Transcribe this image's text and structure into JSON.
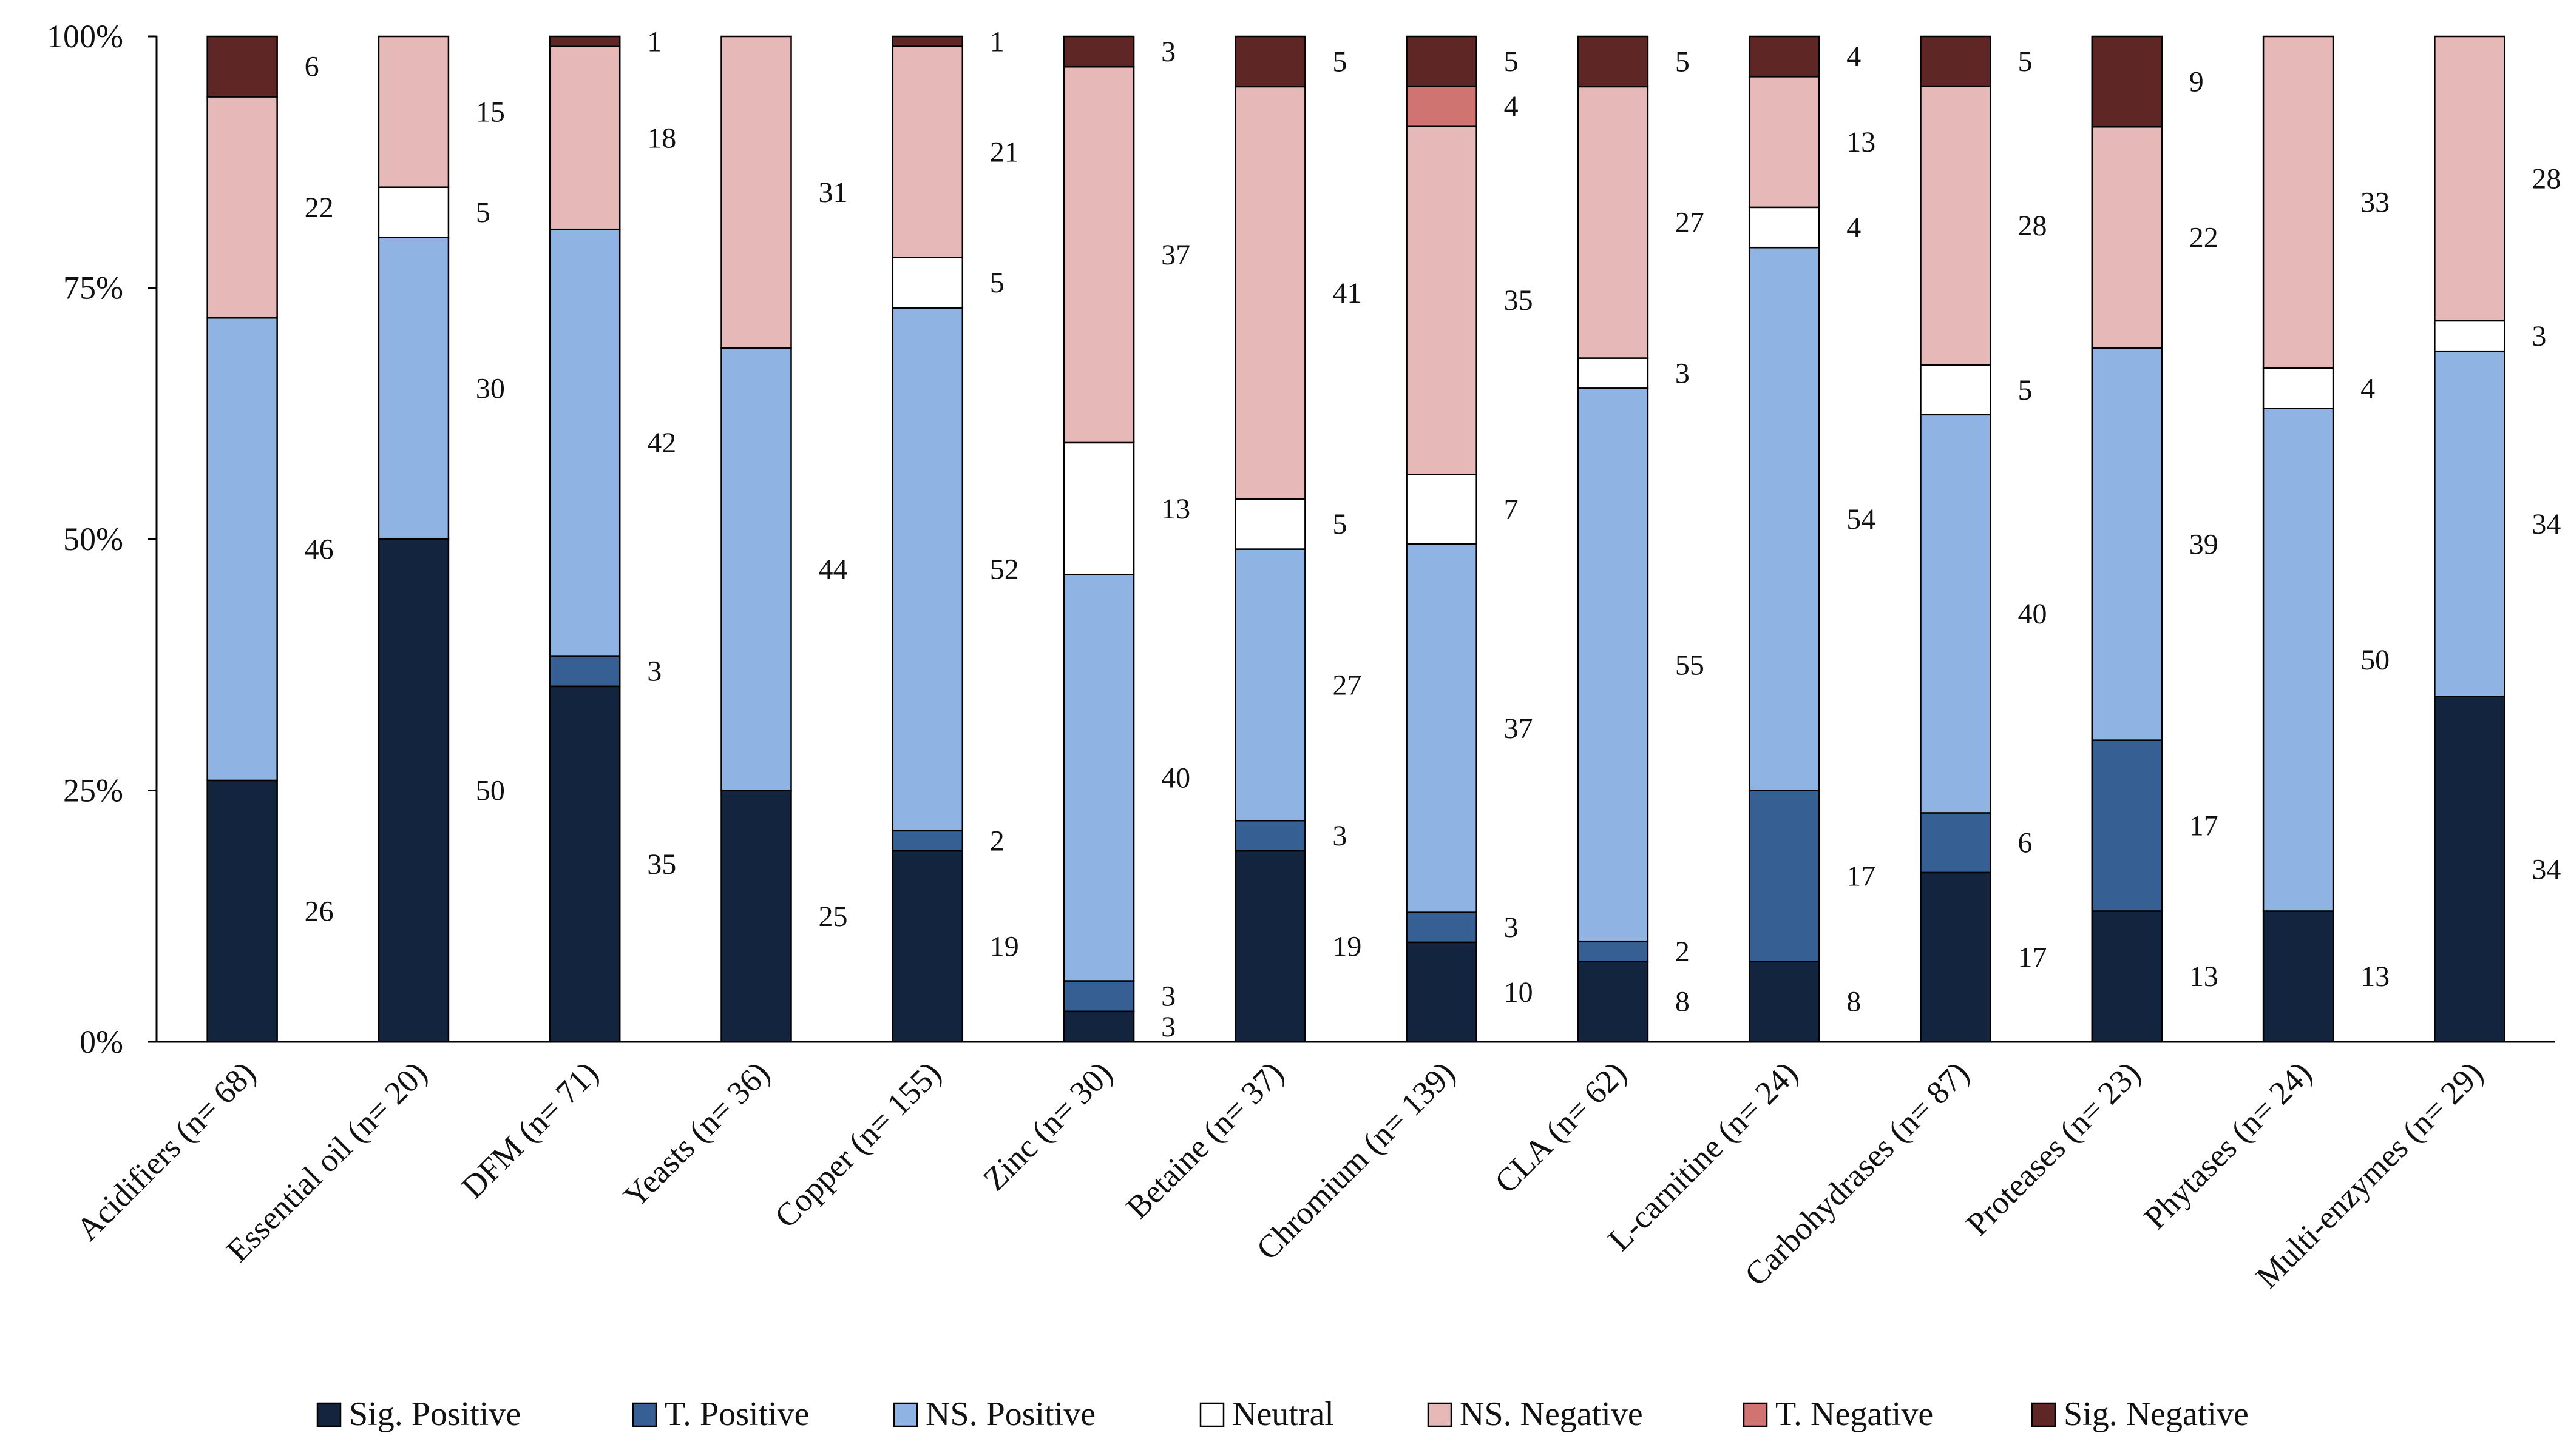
{
  "chart_data": {
    "type": "bar",
    "stacked": true,
    "normalized": true,
    "categories": [
      "Acidifiers (n= 68)",
      "Essential oil (n= 20)",
      "DFM (n= 71)",
      "Yeasts (n= 36)",
      "Copper (n= 155)",
      "Zinc (n= 30)",
      "Betaine (n= 37)",
      "Chromium (n= 139)",
      "CLA (n= 62)",
      "L-carnitine (n= 24)",
      "Carbohydrases (n= 87)",
      "Proteases (n= 23)",
      "Phytases (n= 24)",
      "Multi-enzymes (n= 29)"
    ],
    "series": [
      {
        "name": "Sig. Positive",
        "color": "#13243f",
        "values": [
          26,
          50,
          35,
          25,
          19,
          3,
          19,
          10,
          8,
          8,
          17,
          13,
          13,
          34
        ]
      },
      {
        "name": "T. Positive",
        "color": "#365f93",
        "values": [
          0,
          0,
          3,
          0,
          2,
          3,
          3,
          3,
          2,
          17,
          6,
          17,
          0,
          0
        ]
      },
      {
        "name": "NS. Positive",
        "color": "#8fb4e3",
        "values": [
          46,
          30,
          42,
          44,
          52,
          40,
          27,
          37,
          55,
          54,
          40,
          39,
          50,
          34
        ]
      },
      {
        "name": "Neutral",
        "color": "#ffffff",
        "values": [
          0,
          5,
          0,
          0,
          5,
          13,
          5,
          7,
          3,
          4,
          5,
          0,
          4,
          3
        ]
      },
      {
        "name": "NS. Negative",
        "color": "#e6b9b8",
        "values": [
          22,
          15,
          18,
          31,
          21,
          37,
          41,
          35,
          27,
          13,
          28,
          22,
          33,
          28
        ]
      },
      {
        "name": "T. Negative",
        "color": "#d07472",
        "values": [
          0,
          0,
          0,
          0,
          0,
          0,
          0,
          4,
          0,
          0,
          0,
          0,
          0,
          0
        ]
      },
      {
        "name": "Sig. Negative",
        "color": "#5e2625",
        "values": [
          6,
          0,
          1,
          0,
          1,
          3,
          5,
          5,
          5,
          4,
          5,
          9,
          0,
          0
        ]
      }
    ],
    "y_ticks": [
      "0%",
      "25%",
      "50%",
      "75%",
      "100%"
    ],
    "ylim": [
      0,
      100
    ],
    "legend_position": "bottom",
    "grid": false
  }
}
